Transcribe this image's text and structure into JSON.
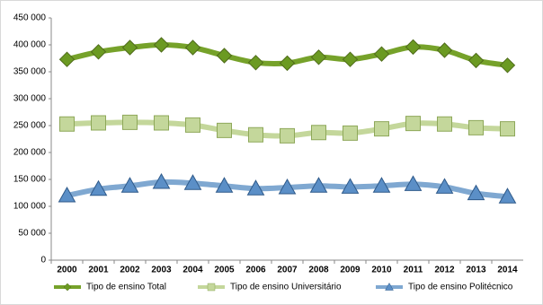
{
  "chart_data": {
    "type": "line",
    "categories": [
      "2000",
      "2001",
      "2002",
      "2003",
      "2004",
      "2005",
      "2006",
      "2007",
      "2008",
      "2009",
      "2010",
      "2011",
      "2012",
      "2013",
      "2014"
    ],
    "series": [
      {
        "name": "Tipo de ensino Total",
        "color": "#76a22a",
        "marker": "diamond",
        "values": [
          373000,
          387000,
          395000,
          400000,
          395000,
          380000,
          367000,
          366000,
          377000,
          373000,
          383000,
          396000,
          390000,
          371000,
          362000
        ]
      },
      {
        "name": "Tipo de ensino Universitário",
        "color": "#c4d79b",
        "marker": "square",
        "values": [
          253000,
          255000,
          256000,
          255000,
          251000,
          241000,
          233000,
          231000,
          237000,
          236000,
          244000,
          254000,
          253000,
          246000,
          244000
        ]
      },
      {
        "name": "Tipo de ensino Politécnico",
        "color": "#7fa8d1",
        "marker": "triangle",
        "values": [
          120000,
          132000,
          138000,
          145000,
          143000,
          138000,
          133000,
          135000,
          138000,
          136000,
          138000,
          141000,
          136000,
          124000,
          118000
        ]
      }
    ],
    "ylim": [
      0,
      450000
    ],
    "yticks": [
      0,
      {
        "value": 50000,
        "label": "50 000"
      },
      {
        "value": 100000,
        "label": "100 000"
      },
      {
        "value": 150000,
        "label": "150 000"
      },
      {
        "value": 200000,
        "label": "200 000"
      },
      {
        "value": 250000,
        "label": "250 000"
      },
      {
        "value": 300000,
        "label": "300 000"
      },
      {
        "value": 350000,
        "label": "350 000"
      },
      {
        "value": 400000,
        "label": "400 000"
      },
      {
        "value": 450000,
        "label": "450 000"
      }
    ],
    "grid": false,
    "legend": "bottom"
  }
}
